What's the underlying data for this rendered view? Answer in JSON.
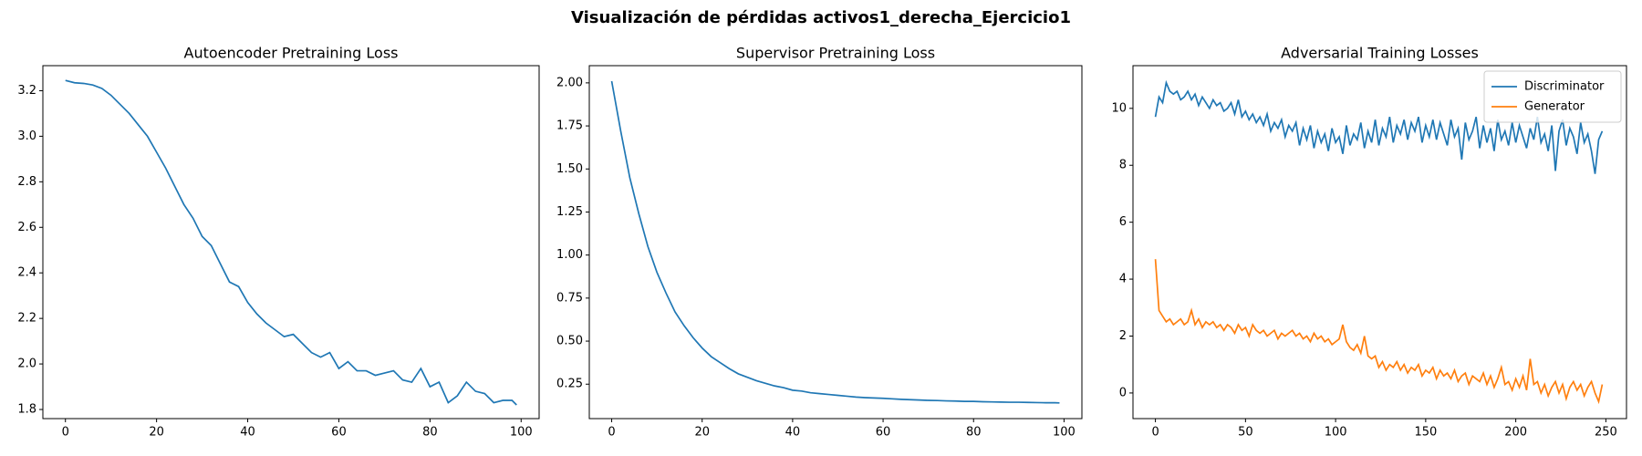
{
  "title": "Visualización de pérdidas activos1_derecha_Ejercicio1",
  "chart_data": [
    {
      "type": "line",
      "title": "Autoencoder Pretraining Loss",
      "color": "#1f77b4",
      "x": [
        0,
        2,
        4,
        6,
        8,
        10,
        12,
        14,
        16,
        18,
        20,
        22,
        24,
        26,
        28,
        30,
        32,
        34,
        36,
        38,
        40,
        42,
        44,
        46,
        48,
        50,
        52,
        54,
        56,
        58,
        60,
        62,
        64,
        66,
        68,
        70,
        72,
        74,
        76,
        78,
        80,
        82,
        84,
        86,
        88,
        90,
        92,
        94,
        96,
        98,
        99
      ],
      "values": [
        3.245,
        3.235,
        3.232,
        3.225,
        3.21,
        3.18,
        3.14,
        3.1,
        3.05,
        3.0,
        2.93,
        2.86,
        2.78,
        2.7,
        2.64,
        2.56,
        2.52,
        2.44,
        2.36,
        2.34,
        2.27,
        2.22,
        2.18,
        2.15,
        2.12,
        2.13,
        2.09,
        2.05,
        2.03,
        2.05,
        1.98,
        2.01,
        1.97,
        1.97,
        1.95,
        1.96,
        1.97,
        1.93,
        1.92,
        1.98,
        1.9,
        1.92,
        1.83,
        1.86,
        1.92,
        1.88,
        1.87,
        1.83,
        1.84,
        1.84,
        1.82
      ],
      "xlim": [
        -4.95,
        103.95
      ],
      "xticks": [
        0,
        20,
        40,
        60,
        80,
        100
      ],
      "ylim": [
        1.76,
        3.31
      ],
      "yticks": [
        1.8,
        {
          "value": 2,
          "label": "2.0"
        },
        2.2,
        2.4,
        2.6,
        2.8,
        {
          "value": 3,
          "label": "3.0"
        },
        3.2
      ]
    },
    {
      "type": "line",
      "title": "Supervisor Pretraining Loss",
      "color": "#1f77b4",
      "x": [
        0,
        2,
        4,
        6,
        8,
        10,
        12,
        14,
        16,
        18,
        20,
        22,
        24,
        26,
        28,
        30,
        32,
        34,
        36,
        38,
        40,
        42,
        44,
        46,
        48,
        50,
        52,
        54,
        56,
        58,
        60,
        62,
        64,
        66,
        68,
        70,
        72,
        74,
        76,
        78,
        80,
        82,
        84,
        86,
        88,
        90,
        92,
        94,
        96,
        98,
        99
      ],
      "values": [
        2.01,
        1.72,
        1.45,
        1.24,
        1.05,
        0.9,
        0.78,
        0.67,
        0.59,
        0.52,
        0.46,
        0.41,
        0.375,
        0.34,
        0.31,
        0.29,
        0.27,
        0.255,
        0.24,
        0.23,
        0.215,
        0.21,
        0.2,
        0.195,
        0.19,
        0.185,
        0.18,
        0.175,
        0.172,
        0.17,
        0.168,
        0.165,
        0.162,
        0.16,
        0.158,
        0.156,
        0.155,
        0.153,
        0.152,
        0.15,
        0.15,
        0.148,
        0.147,
        0.146,
        0.145,
        0.145,
        0.144,
        0.143,
        0.142,
        0.142,
        0.141
      ],
      "xlim": [
        -4.95,
        103.95
      ],
      "xticks": [
        0,
        20,
        40,
        60,
        80,
        100
      ],
      "ylim": [
        0.05,
        2.1
      ],
      "yticks": [
        0.25,
        {
          "value": 0.5,
          "label": "0.50"
        },
        0.75,
        {
          "value": 1,
          "label": "1.00"
        },
        1.25,
        {
          "value": 1.5,
          "label": "1.50"
        },
        1.75,
        {
          "value": 2,
          "label": "2.00"
        }
      ]
    },
    {
      "type": "line",
      "title": "Adversarial Training Losses",
      "legend": "upper right",
      "x": [
        0,
        2,
        4,
        6,
        8,
        10,
        12,
        14,
        16,
        18,
        20,
        22,
        24,
        26,
        28,
        30,
        32,
        34,
        36,
        38,
        40,
        42,
        44,
        46,
        48,
        50,
        52,
        54,
        56,
        58,
        60,
        62,
        64,
        66,
        68,
        70,
        72,
        74,
        76,
        78,
        80,
        82,
        84,
        86,
        88,
        90,
        92,
        94,
        96,
        98,
        100,
        102,
        104,
        106,
        108,
        110,
        112,
        114,
        116,
        118,
        120,
        122,
        124,
        126,
        128,
        130,
        132,
        134,
        136,
        138,
        140,
        142,
        144,
        146,
        148,
        150,
        152,
        154,
        156,
        158,
        160,
        162,
        164,
        166,
        168,
        170,
        172,
        174,
        176,
        178,
        180,
        182,
        184,
        186,
        188,
        190,
        192,
        194,
        196,
        198,
        200,
        202,
        204,
        206,
        208,
        210,
        212,
        214,
        216,
        218,
        220,
        222,
        224,
        226,
        228,
        230,
        232,
        234,
        236,
        238,
        240,
        242,
        244,
        246,
        248
      ],
      "series": [
        {
          "name": "Discriminator",
          "color": "#1f77b4",
          "values": [
            9.7,
            10.4,
            10.2,
            10.9,
            10.6,
            10.5,
            10.6,
            10.3,
            10.4,
            10.6,
            10.3,
            10.5,
            10.1,
            10.4,
            10.2,
            10.0,
            10.3,
            10.1,
            10.2,
            9.9,
            10.0,
            10.2,
            9.8,
            10.3,
            9.7,
            9.9,
            9.6,
            9.8,
            9.5,
            9.7,
            9.4,
            9.8,
            9.2,
            9.5,
            9.3,
            9.6,
            9.0,
            9.4,
            9.2,
            9.5,
            8.7,
            9.3,
            8.9,
            9.4,
            8.6,
            9.2,
            8.8,
            9.1,
            8.5,
            9.3,
            8.8,
            9.0,
            8.4,
            9.4,
            8.7,
            9.1,
            8.9,
            9.5,
            8.6,
            9.2,
            8.8,
            9.6,
            8.7,
            9.3,
            9.0,
            9.7,
            8.8,
            9.4,
            9.1,
            9.6,
            8.9,
            9.5,
            9.2,
            9.7,
            8.8,
            9.4,
            9.0,
            9.6,
            8.9,
            9.5,
            9.1,
            8.7,
            9.6,
            9.0,
            9.3,
            8.2,
            9.5,
            8.9,
            9.2,
            9.7,
            8.6,
            9.4,
            8.8,
            9.3,
            8.5,
            9.6,
            8.9,
            9.2,
            8.7,
            9.5,
            8.8,
            9.4,
            9.0,
            8.6,
            9.3,
            8.9,
            9.7,
            8.8,
            9.1,
            8.5,
            9.4,
            7.8,
            9.2,
            9.6,
            8.7,
            9.3,
            9.0,
            8.4,
            9.5,
            8.8,
            9.1,
            8.5,
            7.7,
            8.9,
            9.2
          ]
        },
        {
          "name": "Generator",
          "color": "#ff7f0e",
          "values": [
            4.7,
            2.9,
            2.7,
            2.5,
            2.6,
            2.4,
            2.5,
            2.6,
            2.4,
            2.5,
            2.9,
            2.4,
            2.6,
            2.3,
            2.5,
            2.4,
            2.5,
            2.3,
            2.4,
            2.2,
            2.4,
            2.3,
            2.1,
            2.4,
            2.2,
            2.3,
            2.0,
            2.4,
            2.2,
            2.1,
            2.2,
            2.0,
            2.1,
            2.2,
            1.9,
            2.1,
            2.0,
            2.1,
            2.2,
            2.0,
            2.1,
            1.9,
            2.0,
            1.8,
            2.1,
            1.9,
            2.0,
            1.8,
            1.9,
            1.7,
            1.8,
            1.9,
            2.4,
            1.8,
            1.6,
            1.5,
            1.7,
            1.4,
            2.0,
            1.3,
            1.2,
            1.3,
            0.9,
            1.1,
            0.8,
            1.0,
            0.9,
            1.1,
            0.8,
            1.0,
            0.7,
            0.9,
            0.8,
            1.0,
            0.6,
            0.8,
            0.7,
            0.9,
            0.5,
            0.8,
            0.6,
            0.7,
            0.5,
            0.8,
            0.4,
            0.6,
            0.7,
            0.3,
            0.6,
            0.5,
            0.4,
            0.7,
            0.3,
            0.6,
            0.2,
            0.5,
            0.9,
            0.3,
            0.4,
            0.1,
            0.5,
            0.2,
            0.6,
            0.1,
            1.2,
            0.3,
            0.4,
            0.0,
            0.3,
            -0.1,
            0.2,
            0.4,
            0.0,
            0.3,
            -0.2,
            0.2,
            0.4,
            0.1,
            0.3,
            -0.1,
            0.2,
            0.4,
            0.0,
            -0.3,
            0.3
          ]
        }
      ],
      "xlim": [
        -12.45,
        261.45
      ],
      "xticks": [
        0,
        50,
        100,
        150,
        200,
        250
      ],
      "ylim": [
        -0.9,
        11.5
      ],
      "yticks": [
        0,
        2,
        4,
        6,
        8,
        10
      ]
    }
  ]
}
